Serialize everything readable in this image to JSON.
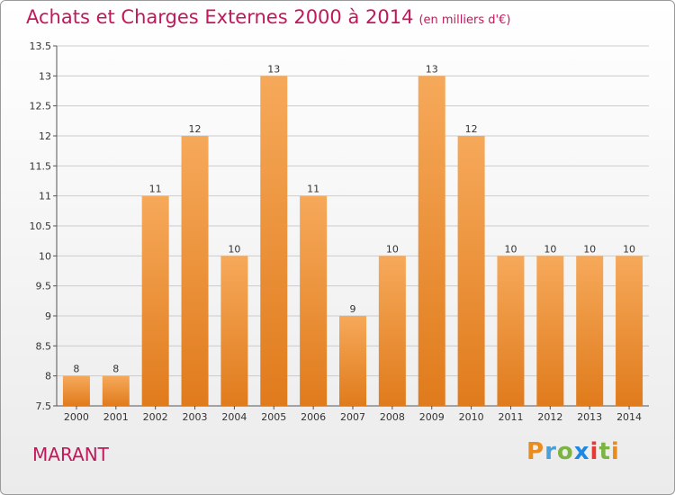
{
  "title": "Achats et Charges Externes 2000 à 2014",
  "subtitle": "(en milliers d'€)",
  "place": "MARANT",
  "logo": {
    "letters": [
      "P",
      "r",
      "o",
      "x",
      "i",
      "t",
      "i"
    ],
    "colors": [
      "#e98c1e",
      "#4a9fd8",
      "#7cb342",
      "#1e88e5",
      "#e53935",
      "#7cb342",
      "#e98c1e"
    ]
  },
  "colors": {
    "title": "#c2185b",
    "bar_top": "#f6a95a",
    "bar_bottom": "#e07b1c",
    "grid": "#cccccc"
  },
  "chart_data": {
    "type": "bar",
    "title": "Achats et Charges Externes 2000 à 2014",
    "subtitle": "(en milliers d'€)",
    "xlabel": "",
    "ylabel": "",
    "categories": [
      "2000",
      "2001",
      "2002",
      "2003",
      "2004",
      "2005",
      "2006",
      "2007",
      "2008",
      "2009",
      "2010",
      "2011",
      "2012",
      "2013",
      "2014"
    ],
    "values": [
      8,
      8,
      11,
      12,
      10,
      13,
      11,
      9,
      10,
      13,
      12,
      10,
      10,
      10,
      10
    ],
    "data_labels": [
      "8",
      "8",
      "11",
      "12",
      "10",
      "13",
      "11",
      "9",
      "10",
      "13",
      "12",
      "10",
      "10",
      "10",
      "10"
    ],
    "ylim": [
      7.5,
      13.5
    ],
    "yticks": [
      7.5,
      8,
      8.5,
      9,
      9.5,
      10,
      10.5,
      11,
      11.5,
      12,
      12.5,
      13,
      13.5
    ],
    "ytick_labels": [
      "7.5",
      "8",
      "8.5",
      "9",
      "9.5",
      "10",
      "10.5",
      "11",
      "11.5",
      "12",
      "12.5",
      "13",
      "13.5"
    ],
    "grid": true,
    "legend": "none"
  }
}
